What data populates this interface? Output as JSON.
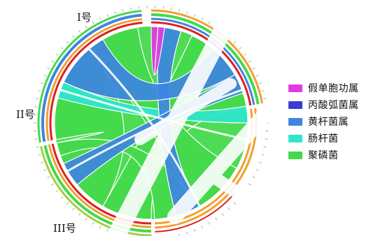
{
  "chart_data": {
    "type": "chord",
    "segments": [
      {
        "name": "I号",
        "start": -90,
        "end": -10
      },
      {
        "name": "II号",
        "start": 170,
        "end": 265
      },
      {
        "name": "III号",
        "start": 90,
        "end": 168
      }
    ],
    "series": [
      {
        "name": "假单胞功属",
        "color": "#e03ce0"
      },
      {
        "name": "丙酸弧菌属",
        "color": "#3c3cd0"
      },
      {
        "name": "黄杆菌属",
        "color": "#3d86e0"
      },
      {
        "name": "肠杆菌",
        "color": "#2ee6cc"
      },
      {
        "name": "聚磷菌",
        "color": "#44d94c"
      }
    ],
    "ribbons": [
      {
        "a": [
          -65,
          -10
        ],
        "b": [
          90,
          120
        ],
        "series": "聚磷菌"
      },
      {
        "a": [
          120,
          168
        ],
        "b": [
          170,
          230
        ],
        "series": "聚磷菌"
      },
      {
        "a": [
          232,
          262
        ],
        "b": [
          28,
          62
        ],
        "series": "聚磷菌"
      },
      {
        "a": [
          62,
          88
        ],
        "b": [
          160,
          168
        ],
        "series": "聚磷菌"
      },
      {
        "a": [
          -10,
          0
        ],
        "b": [
          195,
          205
        ],
        "series": "肠杆菌"
      },
      {
        "a": [
          -85,
          -72
        ],
        "b": [
          60,
          75
        ],
        "series": "黄杆菌属"
      },
      {
        "a": [
          205,
          240
        ],
        "b": [
          -50,
          -30
        ],
        "series": "黄杆菌属"
      },
      {
        "a": [
          140,
          155
        ],
        "b": [
          -30,
          -18
        ],
        "series": "黄杆菌属"
      },
      {
        "a": [
          -90,
          -86
        ],
        "b": [
          -86,
          -82
        ],
        "series": "假单胞功属"
      }
    ]
  },
  "legend": [
    {
      "label": "假单胞功属",
      "color": "#e03ce0"
    },
    {
      "label": "丙酸弧菌属",
      "color": "#3c3cd0"
    },
    {
      "label": "黄杆菌属",
      "color": "#3d86e0"
    },
    {
      "label": "肠杆菌",
      "color": "#2ee6cc"
    },
    {
      "label": "聚磷菌",
      "color": "#44d94c"
    }
  ],
  "labels": {
    "seg1": "I号",
    "seg2": "II号",
    "seg3": "III号"
  }
}
